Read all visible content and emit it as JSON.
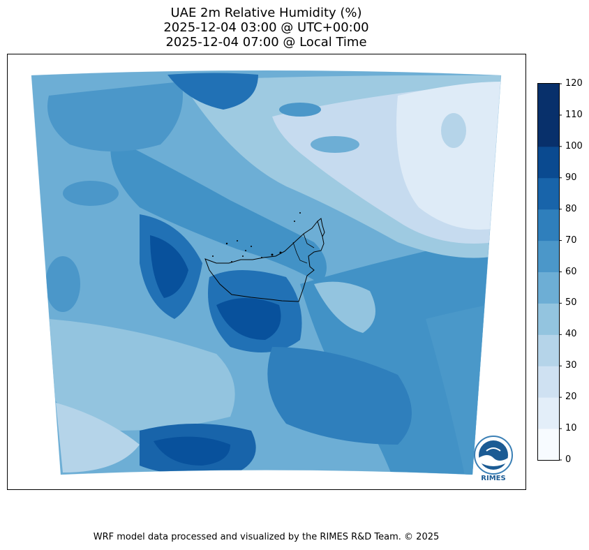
{
  "title": {
    "line1": "UAE 2m Relative Humidity (%)",
    "line2": "2025-12-04 03:00 @ UTC+00:00",
    "line3": "2025-12-04 07:00 @ Local Time"
  },
  "colorbar": {
    "ticks": [
      "0",
      "10",
      "20",
      "30",
      "40",
      "50",
      "60",
      "70",
      "80",
      "90",
      "100",
      "110",
      "120"
    ],
    "colors": [
      "#f7fbff",
      "#e3eef9",
      "#cfe1f2",
      "#b5d4e9",
      "#93c4df",
      "#6daed5",
      "#4b97c9",
      "#2f7fbc",
      "#1864aa",
      "#0a4a90",
      "#08306b",
      "#08306b"
    ]
  },
  "logo": {
    "text": "RIMES",
    "ring_text": "Regional Integrated Multi-Hazard Early Warning System"
  },
  "footer": "WRF model data processed and visualized by the RIMES R&D Team. © 2025",
  "colors": {
    "land_dry": "#dbe9f6",
    "sea": "#4292c6",
    "desert_humid": "#2171b5",
    "border": "#000000"
  }
}
